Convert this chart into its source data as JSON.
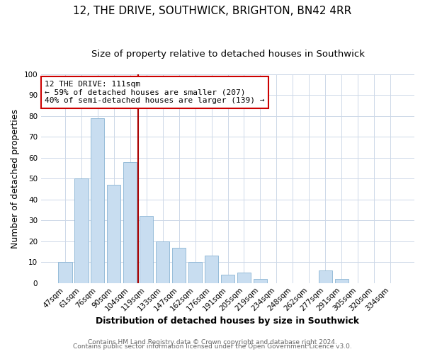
{
  "title": "12, THE DRIVE, SOUTHWICK, BRIGHTON, BN42 4RR",
  "subtitle": "Size of property relative to detached houses in Southwick",
  "xlabel": "Distribution of detached houses by size in Southwick",
  "ylabel": "Number of detached properties",
  "categories": [
    "47sqm",
    "61sqm",
    "76sqm",
    "90sqm",
    "104sqm",
    "119sqm",
    "133sqm",
    "147sqm",
    "162sqm",
    "176sqm",
    "191sqm",
    "205sqm",
    "219sqm",
    "234sqm",
    "248sqm",
    "262sqm",
    "277sqm",
    "291sqm",
    "305sqm",
    "320sqm",
    "334sqm"
  ],
  "values": [
    10,
    50,
    79,
    47,
    58,
    32,
    20,
    17,
    10,
    13,
    4,
    5,
    2,
    0,
    0,
    0,
    6,
    2,
    0,
    0,
    0
  ],
  "bar_color": "#c8ddf0",
  "bar_edgecolor": "#8ab4d4",
  "vline_x_index": 4.5,
  "vline_color": "#aa0000",
  "annotation_text": "12 THE DRIVE: 111sqm\n← 59% of detached houses are smaller (207)\n40% of semi-detached houses are larger (139) →",
  "annotation_box_edgecolor": "#cc0000",
  "ylim": [
    0,
    100
  ],
  "yticks": [
    0,
    10,
    20,
    30,
    40,
    50,
    60,
    70,
    80,
    90,
    100
  ],
  "footer1": "Contains HM Land Registry data © Crown copyright and database right 2024.",
  "footer2": "Contains public sector information licensed under the Open Government Licence v3.0.",
  "background_color": "#ffffff",
  "grid_color": "#cdd8e8",
  "title_fontsize": 11,
  "subtitle_fontsize": 9.5,
  "axis_label_fontsize": 9,
  "tick_fontsize": 7.5,
  "annotation_fontsize": 8,
  "footer_fontsize": 6.5
}
